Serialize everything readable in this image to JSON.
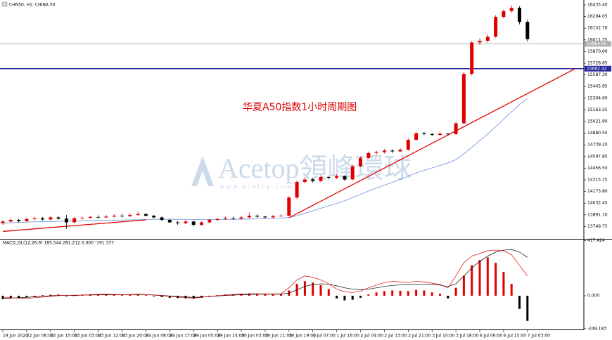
{
  "chart_data": [
    {
      "type": "candlestick",
      "title": "CHN50, H1: CHINA 50",
      "annotation": "华夏A50指数1小时周期图",
      "watermark": [
        "Acetop領峰環球",
        "www.acetop.com"
      ],
      "categories": [
        "19 Jun 2020",
        null,
        null,
        "22 Jun 06:00",
        null,
        null,
        "22 Jun 15:00",
        null,
        null,
        "23 Jun 03:00",
        null,
        null,
        "23 Jun 12:00",
        null,
        null,
        "23 Jun 20:00",
        null,
        null,
        "24 Jun 08:00",
        null,
        null,
        "24 Jun 17:00",
        null,
        null,
        "29 Jun 05:00",
        null,
        null,
        "29 Jun 14:00",
        null,
        null,
        "30 Jun 03:00",
        null,
        null,
        "30 Jun 11:00",
        null,
        null,
        "30 Jun 19:00",
        null,
        null,
        "1 Jul 07:00",
        null,
        null,
        "1 Jul 16:00",
        null,
        null,
        "2 Jul 04:00",
        null,
        null,
        "2 Jul 13:00",
        null,
        null,
        "2 Jul 21:00",
        null,
        null,
        "3 Jul 10:00",
        null,
        null,
        "3 Jul 18:00",
        null,
        null,
        "6 Jul 06:00",
        null,
        null,
        "6 Jul 15:00",
        null,
        null,
        "7 Jul 03:00"
      ],
      "candles": [
        [
          13790,
          13830,
          13770,
          13810
        ],
        [
          13810,
          13850,
          13795,
          13830
        ],
        [
          13830,
          13845,
          13800,
          13815
        ],
        [
          13815,
          13860,
          13805,
          13840
        ],
        [
          13840,
          13870,
          13825,
          13850
        ],
        [
          13850,
          13865,
          13820,
          13835
        ],
        [
          13835,
          13880,
          13825,
          13860
        ],
        [
          13860,
          13875,
          13830,
          13845
        ],
        [
          13845,
          13890,
          13720,
          13800
        ],
        [
          13800,
          13865,
          13790,
          13850
        ],
        [
          13850,
          13870,
          13835,
          13855
        ],
        [
          13855,
          13880,
          13845,
          13865
        ],
        [
          13865,
          13885,
          13845,
          13860
        ],
        [
          13860,
          13890,
          13850,
          13870
        ],
        [
          13870,
          13900,
          13860,
          13880
        ],
        [
          13880,
          13905,
          13860,
          13875
        ],
        [
          13875,
          13910,
          13865,
          13890
        ],
        [
          13890,
          13930,
          13875,
          13900
        ],
        [
          13900,
          13915,
          13870,
          13880
        ],
        [
          13880,
          13890,
          13845,
          13860
        ],
        [
          13860,
          13870,
          13815,
          13830
        ],
        [
          13830,
          13845,
          13790,
          13800
        ],
        [
          13800,
          13815,
          13770,
          13790
        ],
        [
          13790,
          13830,
          13780,
          13810
        ],
        [
          13810,
          13820,
          13750,
          13770
        ],
        [
          13770,
          13815,
          13760,
          13800
        ],
        [
          13800,
          13845,
          13790,
          13830
        ],
        [
          13830,
          13855,
          13815,
          13840
        ],
        [
          13840,
          13870,
          13830,
          13850
        ],
        [
          13850,
          13870,
          13830,
          13845
        ],
        [
          13845,
          13880,
          13835,
          13860
        ],
        [
          13860,
          13920,
          13850,
          13880
        ],
        [
          13880,
          13895,
          13855,
          13870
        ],
        [
          13870,
          13880,
          13845,
          13860
        ],
        [
          13860,
          13890,
          13850,
          13875
        ],
        [
          13875,
          13900,
          13865,
          13880
        ],
        [
          13880,
          14120,
          13875,
          14100
        ],
        [
          14100,
          14310,
          14080,
          14290
        ],
        [
          14290,
          14350,
          14270,
          14320
        ],
        [
          14320,
          14340,
          14280,
          14300
        ],
        [
          14300,
          14370,
          14290,
          14350
        ],
        [
          14350,
          14365,
          14320,
          14340
        ],
        [
          14340,
          14380,
          14325,
          14360
        ],
        [
          14360,
          14370,
          14300,
          14320
        ],
        [
          14320,
          14500,
          14310,
          14480
        ],
        [
          14480,
          14600,
          14470,
          14580
        ],
        [
          14580,
          14660,
          14570,
          14640
        ],
        [
          14640,
          14670,
          14620,
          14650
        ],
        [
          14650,
          14690,
          14635,
          14670
        ],
        [
          14670,
          14685,
          14640,
          14660
        ],
        [
          14660,
          14700,
          14650,
          14680
        ],
        [
          14680,
          14820,
          14670,
          14800
        ],
        [
          14800,
          14900,
          14790,
          14880
        ],
        [
          14880,
          14895,
          14855,
          14870
        ],
        [
          14870,
          14885,
          14845,
          14860
        ],
        [
          14860,
          14890,
          14850,
          14875
        ],
        [
          14875,
          14885,
          14850,
          14870
        ],
        [
          14870,
          15020,
          14860,
          15000
        ],
        [
          15000,
          15620,
          14990,
          15600
        ],
        [
          15600,
          16000,
          15580,
          15980
        ],
        [
          15980,
          16030,
          15950,
          16000
        ],
        [
          16000,
          16080,
          15980,
          16050
        ],
        [
          16050,
          16310,
          16040,
          16290
        ],
        [
          16290,
          16380,
          16270,
          16360
        ],
        [
          16360,
          16430,
          16340,
          16400
        ],
        [
          16400,
          16420,
          16200,
          16230
        ],
        [
          16230,
          16260,
          15990,
          16020
        ]
      ],
      "up_color": "#e00000",
      "down_color": "#000000",
      "ma_values": [
        13790,
        13795,
        13800,
        13803,
        13806,
        13808,
        13810,
        13812,
        13814,
        13816,
        13818,
        13820,
        13822,
        13824,
        13826,
        13828,
        13830,
        13832,
        13834,
        13836,
        13838,
        13838,
        13837,
        13836,
        13835,
        13834,
        13834,
        13835,
        13836,
        13837,
        13838,
        13840,
        13842,
        13845,
        13848,
        13852,
        13860,
        13880,
        13910,
        13940,
        13970,
        14000,
        14030,
        14060,
        14100,
        14140,
        14180,
        14215,
        14250,
        14285,
        14320,
        14360,
        14400,
        14430,
        14460,
        14490,
        14520,
        14560,
        14630,
        14710,
        14790,
        14870,
        14960,
        15050,
        15140,
        15230,
        15300
      ],
      "ma_color": "#6a8fe0",
      "trendlines": [
        {
          "x": [
            0,
            18
          ],
          "y": [
            13690,
            13830
          ],
          "color": "#e00000"
        },
        {
          "x": [
            36,
            72
          ],
          "y": [
            13855,
            15662
          ],
          "color": "#e00000"
        }
      ],
      "levels": [
        {
          "value": 15964.05,
          "color": "#b0b0b0"
        },
        {
          "value": 15662.42,
          "color": "#2a2aa0"
        }
      ],
      "ylim": [
        13600,
        16478
      ],
      "yticks": [
        {
          "value": 16435.4,
          "label": "16435.40"
        },
        16294.05,
        {
          "value": 16152.7,
          "label": "16152.70"
        },
        16011.35,
        {
          "value": 15870,
          "label": "15870.00"
        },
        15728.65,
        {
          "value": 15587.3,
          "label": "15587.30"
        },
        15445.95,
        {
          "value": 15304.6,
          "label": "15304.60"
        },
        15163.25,
        {
          "value": 15021.9,
          "label": "15021.90"
        },
        14880.55,
        {
          "value": 14739.2,
          "label": "14739.20"
        },
        14597.85,
        {
          "value": 14456.5,
          "label": "14456.50"
        },
        14315.15,
        {
          "value": 14173.8,
          "label": "14173.80"
        },
        14032.45,
        {
          "value": 13891.1,
          "label": "13891.10"
        },
        13749.75
      ]
    },
    {
      "type": "macd",
      "title": "MACD_DL(12,26,9) 185.544 281.212 0.000 -191.337",
      "histogram": [
        -25,
        -20,
        -15,
        -10,
        -5,
        5,
        8,
        10,
        -5,
        5,
        8,
        10,
        12,
        10,
        8,
        6,
        8,
        10,
        5,
        -5,
        -10,
        -15,
        -18,
        -20,
        -22,
        -15,
        -5,
        5,
        10,
        12,
        15,
        18,
        15,
        12,
        10,
        10,
        40,
        90,
        110,
        100,
        80,
        50,
        -20,
        -35,
        -30,
        -15,
        10,
        25,
        35,
        40,
        38,
        35,
        45,
        40,
        25,
        15,
        -20,
        60,
        150,
        230,
        270,
        290,
        250,
        180,
        90,
        -100,
        -190
      ],
      "up_color": "#e00000",
      "down_color": "#000000",
      "lines": [
        {
          "color": "#000000",
          "values": [
            -20,
            -18,
            -15,
            -12,
            -8,
            -5,
            0,
            2,
            3,
            4,
            5,
            6,
            7,
            8,
            8,
            8,
            9,
            10,
            9,
            6,
            3,
            -2,
            -6,
            -10,
            -12,
            -10,
            -6,
            -2,
            2,
            5,
            8,
            10,
            12,
            12,
            12,
            12,
            20,
            45,
            70,
            85,
            90,
            88,
            75,
            60,
            50,
            45,
            50,
            60,
            70,
            78,
            82,
            85,
            88,
            88,
            85,
            80,
            70,
            90,
            150,
            210,
            260,
            300,
            330,
            345,
            350,
            330,
            290
          ]
        },
        {
          "color": "#e00000",
          "values": [
            -10,
            -15,
            -18,
            -20,
            -15,
            -10,
            -5,
            0,
            5,
            0,
            5,
            8,
            10,
            12,
            10,
            8,
            10,
            12,
            10,
            5,
            0,
            -5,
            -10,
            -15,
            -18,
            -12,
            -5,
            0,
            5,
            10,
            12,
            15,
            15,
            14,
            14,
            15,
            60,
            120,
            150,
            140,
            120,
            90,
            50,
            30,
            25,
            35,
            60,
            80,
            100,
            110,
            105,
            100,
            110,
            105,
            95,
            85,
            60,
            150,
            250,
            300,
            320,
            340,
            345,
            340,
            310,
            230,
            150
          ]
        }
      ],
      "ylim": [
        -255,
        425
      ],
      "yticks": [
        417.424,
        {
          "value": 0,
          "label": "0.000"
        },
        -249.183
      ]
    }
  ]
}
